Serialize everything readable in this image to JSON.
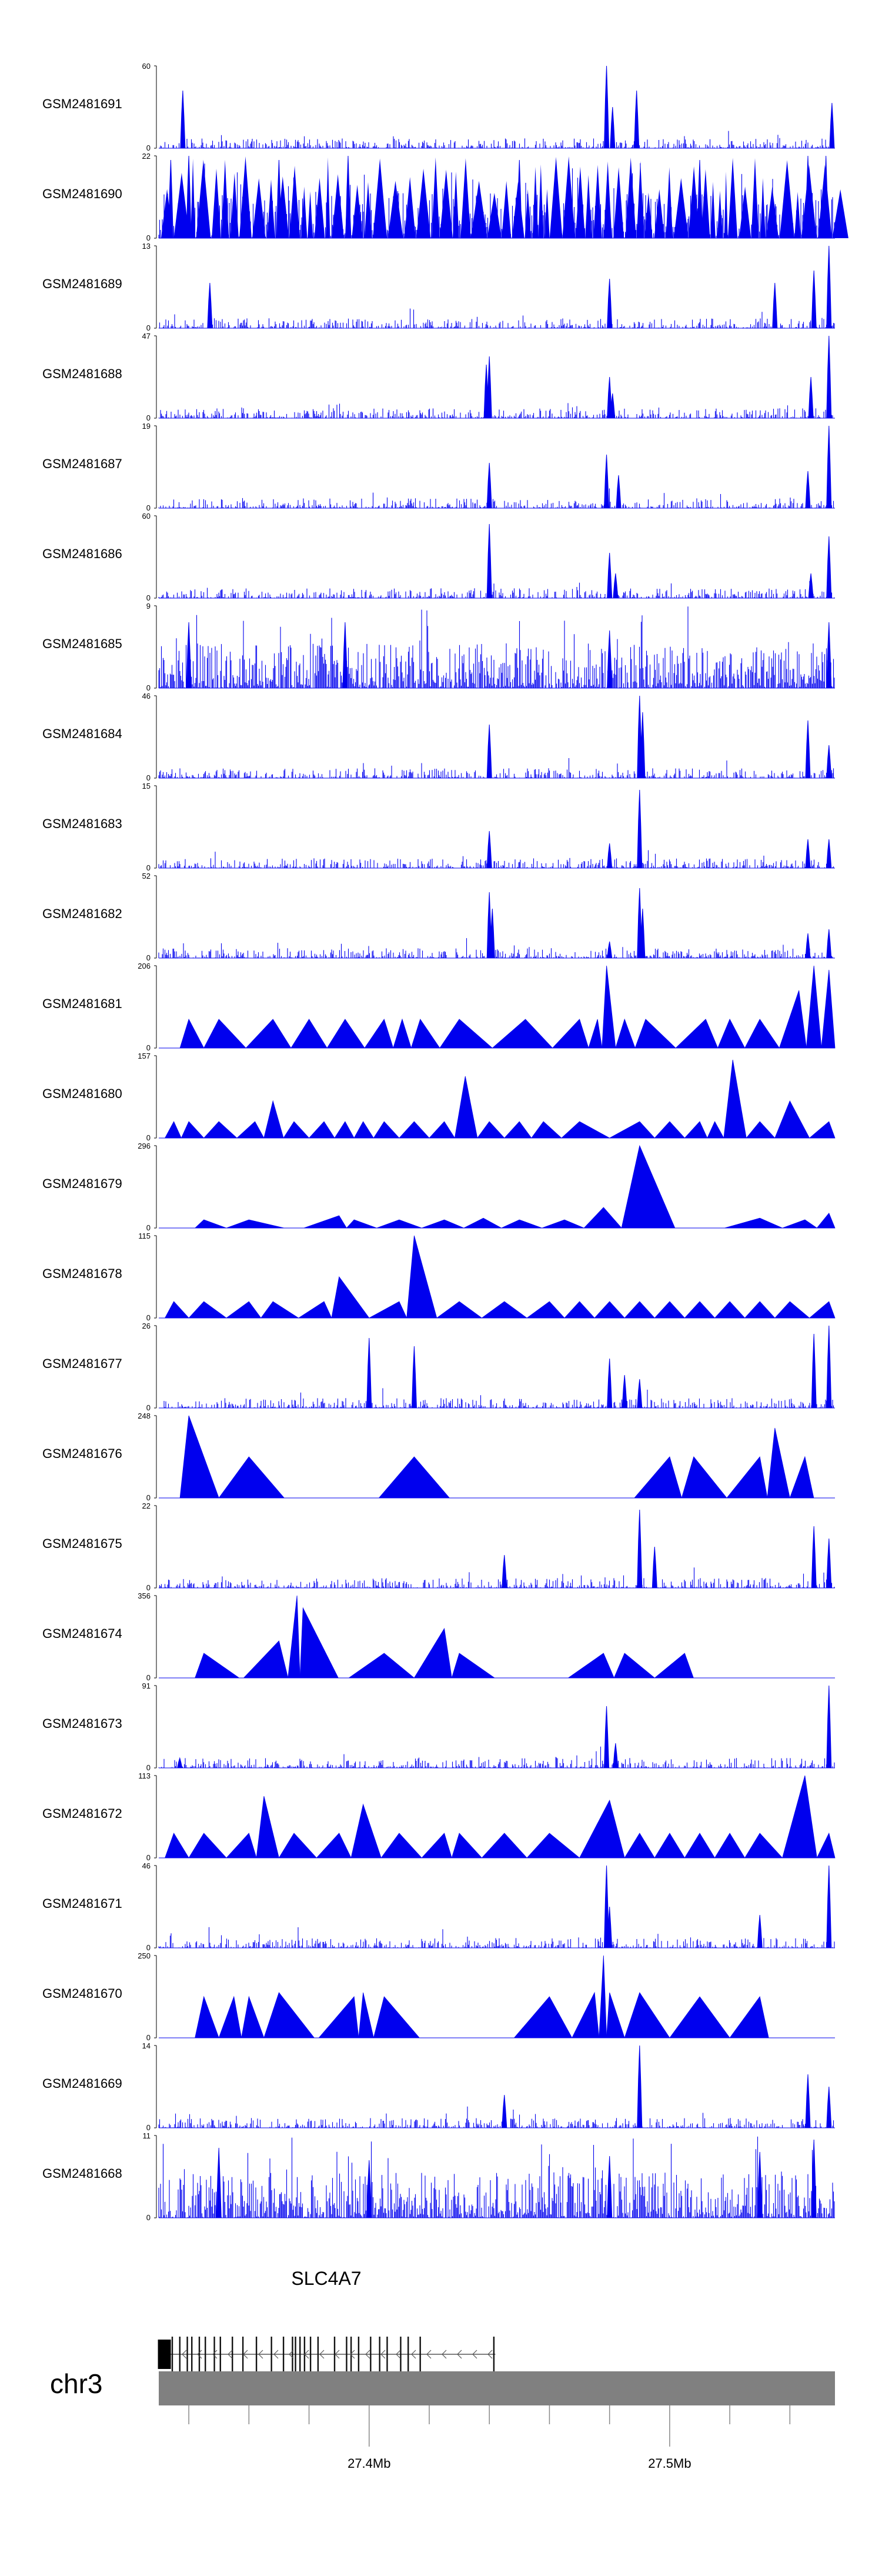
{
  "chart_data": {
    "type": "area",
    "title": "",
    "chromosome": "chr3",
    "x_axis": {
      "unit": "Mb",
      "range": [
        27.33,
        27.555
      ],
      "ticks": [
        27.34,
        27.36,
        27.38,
        27.4,
        27.42,
        27.44,
        27.46,
        27.48,
        27.5,
        27.52,
        27.54
      ],
      "labeled_ticks": [
        {
          "value": 27.4,
          "label": "27.4Mb"
        },
        {
          "value": 27.5,
          "label": "27.5Mb"
        }
      ]
    },
    "series_color": "#0000ee",
    "tracks": [
      {
        "name": "GSM2481691",
        "ymin": "0",
        "ymax": "60",
        "style": "signal",
        "peaks": [
          [
            27.338,
            0.7
          ],
          [
            27.479,
            1.0
          ],
          [
            27.481,
            0.5
          ],
          [
            27.489,
            0.7
          ],
          [
            27.554,
            0.55
          ]
        ]
      },
      {
        "name": "GSM2481690",
        "ymin": "0",
        "ymax": "22",
        "style": "dense-tri",
        "peaks": [
          [
            27.334,
            0.95
          ],
          [
            27.34,
            1.0
          ],
          [
            27.37,
            0.95
          ],
          [
            27.393,
            1.0
          ],
          [
            27.45,
            0.95
          ],
          [
            27.51,
            0.95
          ],
          [
            27.546,
            1.0
          ],
          [
            27.552,
            1.0
          ]
        ]
      },
      {
        "name": "GSM2481689",
        "ymin": "0",
        "ymax": "13",
        "style": "signal",
        "peaks": [
          [
            27.347,
            0.55
          ],
          [
            27.48,
            0.6
          ],
          [
            27.535,
            0.55
          ],
          [
            27.548,
            0.7
          ],
          [
            27.553,
            1.0
          ]
        ]
      },
      {
        "name": "GSM2481688",
        "ymin": "0",
        "ymax": "47",
        "style": "signal",
        "peaks": [
          [
            27.439,
            0.65
          ],
          [
            27.44,
            0.75
          ],
          [
            27.48,
            0.5
          ],
          [
            27.481,
            0.3
          ],
          [
            27.547,
            0.5
          ],
          [
            27.553,
            1.0
          ]
        ]
      },
      {
        "name": "GSM2481687",
        "ymin": "0",
        "ymax": "19",
        "style": "signal",
        "peaks": [
          [
            27.44,
            0.55
          ],
          [
            27.479,
            0.65
          ],
          [
            27.483,
            0.4
          ],
          [
            27.546,
            0.45
          ],
          [
            27.553,
            1.0
          ]
        ]
      },
      {
        "name": "GSM2481686",
        "ymin": "0",
        "ymax": "60",
        "style": "signal",
        "peaks": [
          [
            27.44,
            0.9
          ],
          [
            27.48,
            0.55
          ],
          [
            27.482,
            0.3
          ],
          [
            27.547,
            0.3
          ],
          [
            27.553,
            0.75
          ]
        ]
      },
      {
        "name": "GSM2481685",
        "ymin": "0",
        "ymax": "9",
        "style": "dense",
        "peaks": [
          [
            27.34,
            0.8
          ],
          [
            27.392,
            0.8
          ],
          [
            27.48,
            0.7
          ],
          [
            27.553,
            0.8
          ]
        ]
      },
      {
        "name": "GSM2481684",
        "ymin": "0",
        "ymax": "46",
        "style": "signal",
        "peaks": [
          [
            27.44,
            0.65
          ],
          [
            27.49,
            1.0
          ],
          [
            27.491,
            0.8
          ],
          [
            27.546,
            0.7
          ],
          [
            27.553,
            0.4
          ]
        ]
      },
      {
        "name": "GSM2481683",
        "ymin": "0",
        "ymax": "15",
        "style": "signal",
        "peaks": [
          [
            27.44,
            0.45
          ],
          [
            27.48,
            0.3
          ],
          [
            27.49,
            0.95
          ],
          [
            27.546,
            0.35
          ],
          [
            27.553,
            0.35
          ]
        ]
      },
      {
        "name": "GSM2481682",
        "ymin": "0",
        "ymax": "52",
        "style": "signal",
        "peaks": [
          [
            27.44,
            0.8
          ],
          [
            27.441,
            0.6
          ],
          [
            27.48,
            0.2
          ],
          [
            27.49,
            0.85
          ],
          [
            27.491,
            0.6
          ],
          [
            27.546,
            0.3
          ],
          [
            27.553,
            0.35
          ]
        ]
      },
      {
        "name": "GSM2481681",
        "ymin": "0",
        "ymax": "206",
        "style": "triangles",
        "peaks": [
          [
            27.34,
            0.35
          ],
          [
            27.35,
            0.35
          ],
          [
            27.368,
            0.35
          ],
          [
            27.38,
            0.35
          ],
          [
            27.392,
            0.35
          ],
          [
            27.405,
            0.35
          ],
          [
            27.411,
            0.35
          ],
          [
            27.417,
            0.35
          ],
          [
            27.43,
            0.35
          ],
          [
            27.452,
            0.35
          ],
          [
            27.47,
            0.35
          ],
          [
            27.476,
            0.35
          ],
          [
            27.479,
            1.0
          ],
          [
            27.485,
            0.35
          ],
          [
            27.492,
            0.35
          ],
          [
            27.512,
            0.35
          ],
          [
            27.52,
            0.35
          ],
          [
            27.53,
            0.35
          ],
          [
            27.543,
            0.7
          ],
          [
            27.548,
            1.0
          ],
          [
            27.553,
            0.95
          ]
        ]
      },
      {
        "name": "GSM2481680",
        "ymin": "0",
        "ymax": "157",
        "style": "triangles",
        "peaks": [
          [
            27.335,
            0.2
          ],
          [
            27.34,
            0.2
          ],
          [
            27.35,
            0.2
          ],
          [
            27.362,
            0.2
          ],
          [
            27.368,
            0.45
          ],
          [
            27.375,
            0.2
          ],
          [
            27.385,
            0.2
          ],
          [
            27.392,
            0.2
          ],
          [
            27.398,
            0.2
          ],
          [
            27.405,
            0.2
          ],
          [
            27.415,
            0.2
          ],
          [
            27.425,
            0.2
          ],
          [
            27.432,
            0.75
          ],
          [
            27.44,
            0.2
          ],
          [
            27.45,
            0.2
          ],
          [
            27.458,
            0.2
          ],
          [
            27.47,
            0.2
          ],
          [
            27.49,
            0.2
          ],
          [
            27.5,
            0.2
          ],
          [
            27.51,
            0.2
          ],
          [
            27.515,
            0.2
          ],
          [
            27.521,
            0.95
          ],
          [
            27.53,
            0.2
          ],
          [
            27.54,
            0.45
          ],
          [
            27.553,
            0.2
          ]
        ]
      },
      {
        "name": "GSM2481679",
        "ymin": "0",
        "ymax": "296",
        "style": "triangles",
        "peaks": [
          [
            27.345,
            0.1
          ],
          [
            27.36,
            0.1
          ],
          [
            27.39,
            0.15
          ],
          [
            27.395,
            0.1
          ],
          [
            27.41,
            0.1
          ],
          [
            27.425,
            0.1
          ],
          [
            27.438,
            0.12
          ],
          [
            27.45,
            0.1
          ],
          [
            27.465,
            0.1
          ],
          [
            27.478,
            0.25
          ],
          [
            27.49,
            1.0
          ],
          [
            27.53,
            0.12
          ],
          [
            27.545,
            0.1
          ],
          [
            27.553,
            0.18
          ]
        ]
      },
      {
        "name": "GSM2481678",
        "ymin": "0",
        "ymax": "115",
        "style": "triangles",
        "peaks": [
          [
            27.335,
            0.2
          ],
          [
            27.345,
            0.2
          ],
          [
            27.36,
            0.2
          ],
          [
            27.368,
            0.2
          ],
          [
            27.385,
            0.2
          ],
          [
            27.39,
            0.5
          ],
          [
            27.41,
            0.2
          ],
          [
            27.415,
            1.0
          ],
          [
            27.43,
            0.2
          ],
          [
            27.445,
            0.2
          ],
          [
            27.46,
            0.2
          ],
          [
            27.47,
            0.2
          ],
          [
            27.48,
            0.2
          ],
          [
            27.49,
            0.2
          ],
          [
            27.5,
            0.2
          ],
          [
            27.51,
            0.2
          ],
          [
            27.52,
            0.2
          ],
          [
            27.53,
            0.2
          ],
          [
            27.54,
            0.2
          ],
          [
            27.553,
            0.2
          ]
        ]
      },
      {
        "name": "GSM2481677",
        "ymin": "0",
        "ymax": "26",
        "style": "signal",
        "peaks": [
          [
            27.4,
            0.85
          ],
          [
            27.415,
            0.75
          ],
          [
            27.48,
            0.6
          ],
          [
            27.485,
            0.4
          ],
          [
            27.49,
            0.35
          ],
          [
            27.548,
            0.9
          ],
          [
            27.553,
            1.0
          ]
        ]
      },
      {
        "name": "GSM2481676",
        "ymin": "0",
        "ymax": "248",
        "style": "triangles",
        "peaks": [
          [
            27.34,
            1.0
          ],
          [
            27.36,
            0.5
          ],
          [
            27.415,
            0.5
          ],
          [
            27.5,
            0.5
          ],
          [
            27.508,
            0.5
          ],
          [
            27.53,
            0.5
          ],
          [
            27.535,
            0.85
          ],
          [
            27.545,
            0.5
          ]
        ]
      },
      {
        "name": "GSM2481675",
        "ymin": "0",
        "ymax": "22",
        "style": "signal",
        "peaks": [
          [
            27.445,
            0.4
          ],
          [
            27.49,
            0.95
          ],
          [
            27.495,
            0.5
          ],
          [
            27.548,
            0.75
          ],
          [
            27.553,
            0.6
          ]
        ]
      },
      {
        "name": "GSM2481674",
        "ymin": "0",
        "ymax": "356",
        "style": "triangles",
        "peaks": [
          [
            27.345,
            0.3
          ],
          [
            27.37,
            0.45
          ],
          [
            27.376,
            1.0
          ],
          [
            27.378,
            0.85
          ],
          [
            27.405,
            0.3
          ],
          [
            27.425,
            0.6
          ],
          [
            27.43,
            0.3
          ],
          [
            27.478,
            0.3
          ],
          [
            27.485,
            0.3
          ],
          [
            27.505,
            0.3
          ]
        ]
      },
      {
        "name": "GSM2481673",
        "ymin": "0",
        "ymax": "91",
        "style": "signal",
        "peaks": [
          [
            27.337,
            0.12
          ],
          [
            27.479,
            0.75
          ],
          [
            27.482,
            0.3
          ],
          [
            27.553,
            1.0
          ]
        ]
      },
      {
        "name": "GSM2481672",
        "ymin": "0",
        "ymax": "113",
        "style": "triangles",
        "peaks": [
          [
            27.335,
            0.3
          ],
          [
            27.345,
            0.3
          ],
          [
            27.36,
            0.3
          ],
          [
            27.365,
            0.75
          ],
          [
            27.375,
            0.3
          ],
          [
            27.39,
            0.3
          ],
          [
            27.398,
            0.65
          ],
          [
            27.41,
            0.3
          ],
          [
            27.425,
            0.3
          ],
          [
            27.43,
            0.3
          ],
          [
            27.445,
            0.3
          ],
          [
            27.46,
            0.3
          ],
          [
            27.48,
            0.7
          ],
          [
            27.49,
            0.3
          ],
          [
            27.5,
            0.3
          ],
          [
            27.51,
            0.3
          ],
          [
            27.52,
            0.3
          ],
          [
            27.53,
            0.3
          ],
          [
            27.545,
            1.0
          ],
          [
            27.553,
            0.3
          ]
        ]
      },
      {
        "name": "GSM2481671",
        "ymin": "0",
        "ymax": "46",
        "style": "signal",
        "peaks": [
          [
            27.479,
            1.0
          ],
          [
            27.48,
            0.5
          ],
          [
            27.53,
            0.4
          ],
          [
            27.553,
            1.0
          ]
        ]
      },
      {
        "name": "GSM2481670",
        "ymin": "0",
        "ymax": "250",
        "style": "triangles",
        "peaks": [
          [
            27.345,
            0.5
          ],
          [
            27.355,
            0.5
          ],
          [
            27.36,
            0.5
          ],
          [
            27.37,
            0.55
          ],
          [
            27.395,
            0.5
          ],
          [
            27.398,
            0.55
          ],
          [
            27.405,
            0.5
          ],
          [
            27.46,
            0.5
          ],
          [
            27.475,
            0.55
          ],
          [
            27.478,
            1.0
          ],
          [
            27.48,
            0.55
          ],
          [
            27.49,
            0.55
          ],
          [
            27.51,
            0.5
          ],
          [
            27.53,
            0.5
          ]
        ]
      },
      {
        "name": "GSM2481669",
        "ymin": "0",
        "ymax": "14",
        "style": "signal",
        "peaks": [
          [
            27.445,
            0.4
          ],
          [
            27.49,
            1.0
          ],
          [
            27.546,
            0.65
          ],
          [
            27.553,
            0.5
          ]
        ]
      },
      {
        "name": "GSM2481668",
        "ymin": "0",
        "ymax": "11",
        "style": "dense",
        "peaks": [
          [
            27.35,
            0.85
          ],
          [
            27.4,
            0.7
          ],
          [
            27.48,
            0.75
          ],
          [
            27.53,
            0.8
          ],
          [
            27.548,
            0.95
          ]
        ]
      }
    ],
    "gene": {
      "name": "SLC4A7",
      "start": 27.33,
      "end": 27.442,
      "strand": "-",
      "exons": [
        27.3305,
        27.3345,
        27.337,
        27.3395,
        27.341,
        27.3435,
        27.3455,
        27.3485,
        27.3505,
        27.3545,
        27.358,
        27.3625,
        27.3675,
        27.3715,
        27.3745,
        27.3755,
        27.377,
        27.3785,
        27.3805,
        27.383,
        27.3885,
        27.3925,
        27.394,
        27.3965,
        27.4005,
        27.4035,
        27.406,
        27.4105,
        27.413,
        27.417,
        27.4415
      ]
    }
  }
}
